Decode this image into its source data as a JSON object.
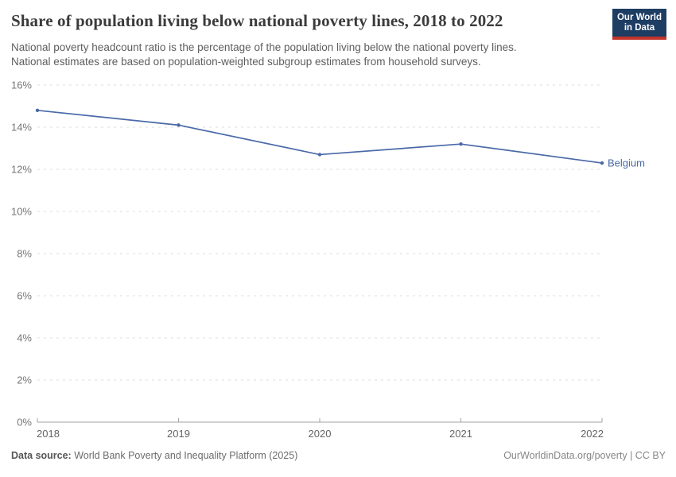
{
  "header": {
    "title": "Share of population living below national poverty lines, 2018 to 2022",
    "subtitle_line1": "National poverty headcount ratio is the percentage of the population living below the national poverty lines.",
    "subtitle_line2": "National estimates are based on population-weighted subgroup estimates from household surveys.",
    "logo_line1": "Our World",
    "logo_line2": "in Data"
  },
  "chart_data": {
    "type": "line",
    "title": "Share of population living below national poverty lines, 2018 to 2022",
    "xlabel": "",
    "ylabel": "",
    "xlim": [
      2018,
      2022
    ],
    "ylim": [
      0,
      16
    ],
    "grid": "horizontal-dashed",
    "legend_position": "end-of-line-label",
    "x_ticks": [
      {
        "v": 2018,
        "label": "2018"
      },
      {
        "v": 2019,
        "label": "2019"
      },
      {
        "v": 2020,
        "label": "2020"
      },
      {
        "v": 2021,
        "label": "2021"
      },
      {
        "v": 2022,
        "label": "2022"
      }
    ],
    "y_ticks": [
      {
        "v": 0,
        "label": "0%"
      },
      {
        "v": 2,
        "label": "2%"
      },
      {
        "v": 4,
        "label": "4%"
      },
      {
        "v": 6,
        "label": "6%"
      },
      {
        "v": 8,
        "label": "8%"
      },
      {
        "v": 10,
        "label": "10%"
      },
      {
        "v": 12,
        "label": "12%"
      },
      {
        "v": 14,
        "label": "14%"
      },
      {
        "v": 16,
        "label": "16%"
      }
    ],
    "series": [
      {
        "name": "Belgium",
        "color": "#4a69a8",
        "points": [
          {
            "x": 2018,
            "y": 14.8
          },
          {
            "x": 2019,
            "y": 14.1
          },
          {
            "x": 2020,
            "y": 12.7
          },
          {
            "x": 2021,
            "y": 13.2
          },
          {
            "x": 2022,
            "y": 12.3
          }
        ]
      }
    ]
  },
  "footer": {
    "source_label": "Data source:",
    "source_value": "World Bank Poverty and Inequality Platform (2025)",
    "rights_link": "OurWorldinData.org/poverty",
    "rights_suffix": " | CC BY"
  },
  "colors": {
    "accent_line": "#4a69a8",
    "logo_background": "#1d3d63",
    "logo_bar": "#c3342b",
    "grid_line": "#dcdcdc",
    "axis_line": "#a3a3a3"
  }
}
